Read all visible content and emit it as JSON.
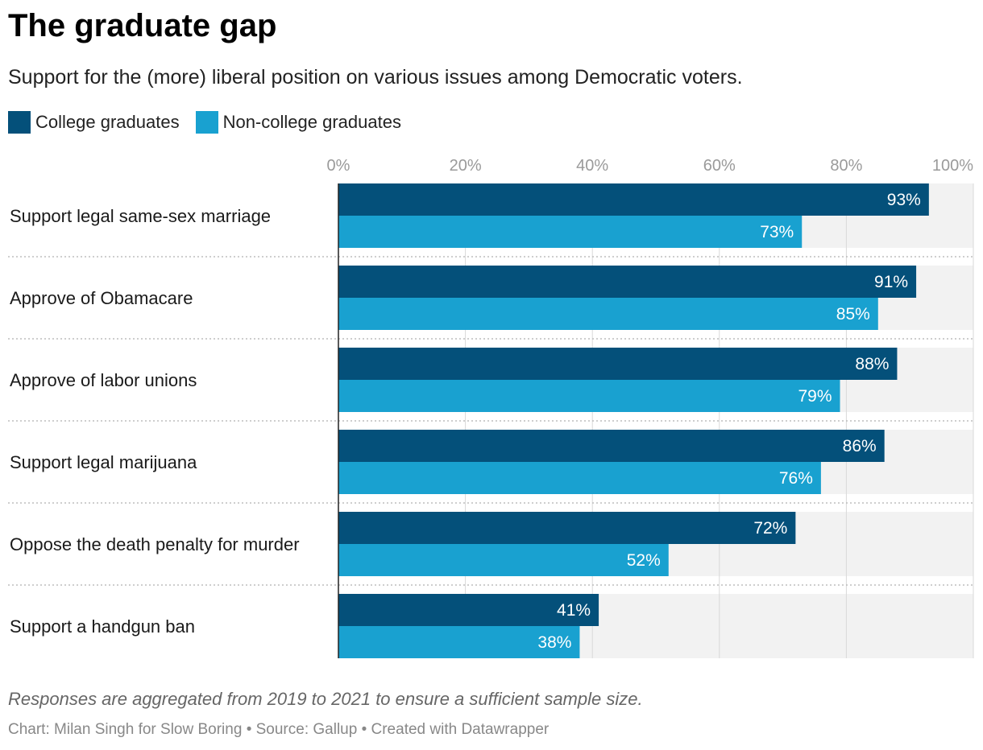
{
  "title": "The graduate gap",
  "subtitle": "Support for the (more) liberal position on various issues among Democratic voters.",
  "notes": "Responses are aggregated from 2019 to 2021 to ensure a sufficient sample size.",
  "byline": "Chart: Milan Singh for Slow Boring • Source: Gallup • Created with Datawrapper",
  "colors": {
    "college": "#04507a",
    "noncollege": "#19a1d0",
    "track": "#f2f2f2"
  },
  "chart_data": {
    "type": "bar",
    "orientation": "horizontal",
    "categories": [
      "Support legal same-sex marriage",
      "Approve of Obamacare",
      "Approve of labor unions",
      "Support legal marijuana",
      "Oppose the death penalty for murder",
      "Support a handgun ban"
    ],
    "series": [
      {
        "name": "College graduates",
        "values": [
          93,
          91,
          88,
          86,
          72,
          41
        ]
      },
      {
        "name": "Non-college graduates",
        "values": [
          73,
          85,
          79,
          76,
          52,
          38
        ]
      }
    ],
    "xlim": [
      0,
      100
    ],
    "xticks": [
      0,
      20,
      40,
      60,
      80,
      100
    ],
    "tick_labels": [
      "0%",
      "20%",
      "40%",
      "60%",
      "80%",
      "100%"
    ],
    "value_suffix": "%",
    "grid": true,
    "legend_position": "top-left"
  }
}
